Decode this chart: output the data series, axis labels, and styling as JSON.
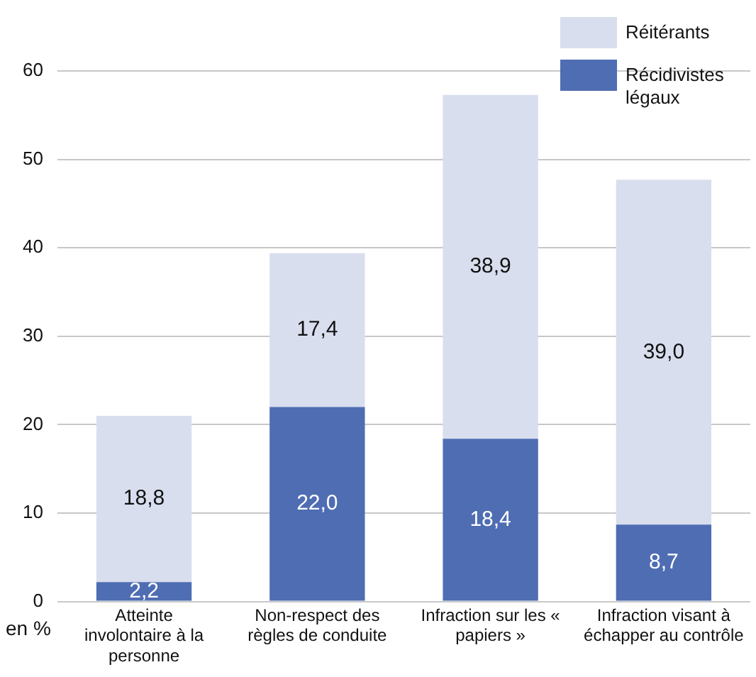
{
  "chart_data": {
    "type": "bar",
    "stacked": true,
    "ylabel": "en %",
    "categories": [
      "Atteinte involontaire à la personne",
      "Non-respect des règles de conduite",
      "Infraction sur les « papiers »",
      "Infraction visant à échapper au contrôle"
    ],
    "series": [
      {
        "name": "Récidivistes légaux",
        "color": "#4f6db3",
        "values": [
          2.2,
          22.0,
          18.4,
          8.7
        ],
        "value_labels": [
          "2,2",
          "22,0",
          "18,4",
          "8,7"
        ]
      },
      {
        "name": "Réitérants",
        "color": "#d8deee",
        "values": [
          18.8,
          17.4,
          38.9,
          39.0
        ],
        "value_labels": [
          "18,8",
          "17,4",
          "38,9",
          "39,0"
        ]
      }
    ],
    "ylim": [
      0,
      60
    ],
    "yticks": [
      0,
      10,
      20,
      30,
      40,
      50,
      60
    ],
    "grid": "y",
    "legend": "top right"
  }
}
